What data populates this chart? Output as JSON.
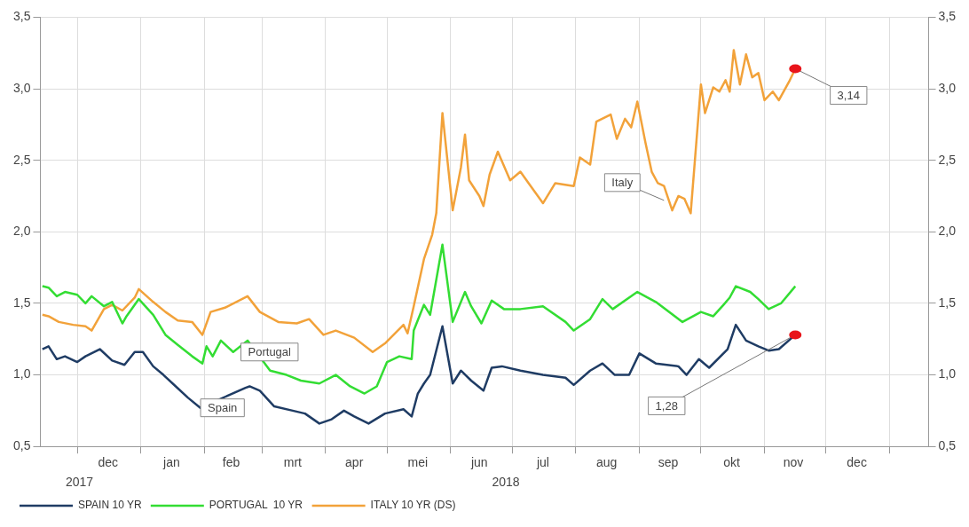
{
  "chart_data": {
    "type": "line",
    "xlim": [
      "2017-11-13",
      "2019-01-20"
    ],
    "xticks": [
      {
        "value": "2017-12-01",
        "label": null
      },
      {
        "value": "2018-01-01",
        "label": null
      },
      {
        "value": "2018-02-01",
        "label": null
      },
      {
        "value": "2018-03-01",
        "label": null
      },
      {
        "value": "2018-04-01",
        "label": null
      },
      {
        "value": "2018-05-01",
        "label": null
      },
      {
        "value": "2018-06-01",
        "label": null
      },
      {
        "value": "2018-07-01",
        "label": null
      },
      {
        "value": "2018-08-01",
        "label": null
      },
      {
        "value": "2018-09-01",
        "label": null
      },
      {
        "value": "2018-10-01",
        "label": null
      },
      {
        "value": "2018-11-01",
        "label": null
      },
      {
        "value": "2018-12-01",
        "label": null
      },
      {
        "value": "2019-01-01",
        "label": null
      },
      {
        "value": "2017-12-16",
        "label": "dec"
      },
      {
        "value": "2018-01-16",
        "label": "jan"
      },
      {
        "value": "2018-02-14",
        "label": "feb"
      },
      {
        "value": "2018-03-16",
        "label": "mrt"
      },
      {
        "value": "2018-04-15",
        "label": "apr"
      },
      {
        "value": "2018-05-16",
        "label": "mei"
      },
      {
        "value": "2018-06-15",
        "label": "jun"
      },
      {
        "value": "2018-07-16",
        "label": "jul"
      },
      {
        "value": "2018-08-16",
        "label": "aug"
      },
      {
        "value": "2018-09-15",
        "label": "sep"
      },
      {
        "value": "2018-10-16",
        "label": "okt"
      },
      {
        "value": "2018-11-15",
        "label": "nov"
      },
      {
        "value": "2018-12-16",
        "label": "dec"
      }
    ],
    "ylim": [
      0.5,
      3.5
    ],
    "yticks": [
      {
        "value": 0.5,
        "label": "0,5"
      },
      {
        "value": 1,
        "label": "1,0"
      },
      {
        "value": 1.5,
        "label": "1,5"
      },
      {
        "value": 2,
        "label": "2,0"
      },
      {
        "value": 2.5,
        "label": "2,5"
      },
      {
        "value": 3,
        "label": "3,0"
      },
      {
        "value": 3.5,
        "label": "3,5"
      }
    ],
    "y2lim": [
      0.5,
      3.5
    ],
    "y2ticks": [
      {
        "value": 0.5,
        "label": "0,5"
      },
      {
        "value": 1,
        "label": "1,0"
      },
      {
        "value": 1.5,
        "label": "1,5"
      },
      {
        "value": 2,
        "label": "2,0"
      },
      {
        "value": 2.5,
        "label": "2,5"
      },
      {
        "value": 3,
        "label": "3,0"
      },
      {
        "value": 3.5,
        "label": "3,5"
      }
    ],
    "grid": true,
    "legend": "bottom left",
    "marker": "none",
    "line_style": "solid",
    "series": [
      {
        "name": "SPAIN 10 YR",
        "color": "#1f3c64",
        "x": [
          "2017-11-14",
          "2017-11-17",
          "2017-11-21",
          "2017-11-25",
          "2017-12-01",
          "2017-12-05",
          "2017-12-12",
          "2017-12-18",
          "2017-12-24",
          "2017-12-29",
          "2018-01-02",
          "2018-01-07",
          "2018-01-12",
          "2018-01-18",
          "2018-01-24",
          "2018-01-30",
          "2018-02-21",
          "2018-02-23",
          "2018-02-28",
          "2018-03-07",
          "2018-03-16",
          "2018-03-22",
          "2018-03-29",
          "2018-04-04",
          "2018-04-10",
          "2018-04-15",
          "2018-04-22",
          "2018-04-30",
          "2018-05-09",
          "2018-05-13",
          "2018-05-16",
          "2018-05-19",
          "2018-05-22",
          "2018-05-28",
          "2018-06-02",
          "2018-06-06",
          "2018-06-11",
          "2018-06-17",
          "2018-06-21",
          "2018-06-26",
          "2018-07-05",
          "2018-07-16",
          "2018-07-27",
          "2018-07-31",
          "2018-08-08",
          "2018-08-14",
          "2018-08-20",
          "2018-08-27",
          "2018-09-01",
          "2018-09-09",
          "2018-09-20",
          "2018-09-24",
          "2018-09-30",
          "2018-10-05",
          "2018-10-14",
          "2018-10-18",
          "2018-10-23",
          "2018-10-29",
          "2018-11-03",
          "2018-11-08",
          "2018-11-16"
        ],
        "values": [
          1.18,
          1.2,
          1.11,
          1.13,
          1.09,
          1.13,
          1.18,
          1.1,
          1.07,
          1.16,
          1.16,
          1.06,
          1.0,
          0.92,
          0.84,
          0.77,
          0.91,
          0.92,
          0.89,
          0.78,
          0.75,
          0.73,
          0.66,
          0.69,
          0.75,
          0.71,
          0.66,
          0.73,
          0.76,
          0.71,
          0.87,
          0.94,
          1.0,
          1.34,
          0.94,
          1.03,
          0.96,
          0.89,
          1.05,
          1.06,
          1.03,
          1.0,
          0.98,
          0.93,
          1.03,
          1.08,
          1.0,
          1.0,
          1.15,
          1.08,
          1.06,
          1.0,
          1.11,
          1.05,
          1.18,
          1.35,
          1.24,
          1.2,
          1.17,
          1.18,
          1.28
        ]
      },
      {
        "name": "PORTUGAL  10 YR",
        "color": "#33dd33",
        "x": [
          "2017-11-14",
          "2017-11-17",
          "2017-11-21",
          "2017-11-25",
          "2017-12-01",
          "2017-12-05",
          "2017-12-08",
          "2017-12-14",
          "2017-12-18",
          "2017-12-23",
          "2017-12-25",
          "2017-12-31",
          "2018-01-07",
          "2018-01-13",
          "2018-01-19",
          "2018-01-26",
          "2018-01-31",
          "2018-02-02",
          "2018-02-05",
          "2018-02-09",
          "2018-02-15",
          "2018-02-22",
          "2018-03-05",
          "2018-03-13",
          "2018-03-20",
          "2018-03-29",
          "2018-04-06",
          "2018-04-13",
          "2018-04-20",
          "2018-04-26",
          "2018-05-01",
          "2018-05-07",
          "2018-05-13",
          "2018-05-14",
          "2018-05-19",
          "2018-05-22",
          "2018-05-28",
          "2018-06-02",
          "2018-06-08",
          "2018-06-11",
          "2018-06-16",
          "2018-06-21",
          "2018-06-27",
          "2018-07-05",
          "2018-07-16",
          "2018-07-27",
          "2018-07-31",
          "2018-08-08",
          "2018-08-14",
          "2018-08-19",
          "2018-08-31",
          "2018-09-09",
          "2018-09-22",
          "2018-10-01",
          "2018-10-07",
          "2018-10-12",
          "2018-10-15",
          "2018-10-18",
          "2018-10-25",
          "2018-10-29",
          "2018-11-03",
          "2018-11-09",
          "2018-11-16"
        ],
        "values": [
          1.62,
          1.61,
          1.55,
          1.58,
          1.56,
          1.5,
          1.55,
          1.48,
          1.51,
          1.36,
          1.41,
          1.53,
          1.42,
          1.28,
          1.21,
          1.13,
          1.08,
          1.2,
          1.13,
          1.24,
          1.16,
          1.24,
          1.03,
          1.0,
          0.96,
          0.94,
          1.0,
          0.92,
          0.87,
          0.92,
          1.09,
          1.13,
          1.11,
          1.31,
          1.49,
          1.42,
          1.91,
          1.37,
          1.58,
          1.48,
          1.36,
          1.52,
          1.46,
          1.46,
          1.48,
          1.37,
          1.31,
          1.39,
          1.53,
          1.46,
          1.58,
          1.51,
          1.37,
          1.44,
          1.41,
          1.49,
          1.54,
          1.62,
          1.58,
          1.53,
          1.46,
          1.5,
          1.62
        ]
      },
      {
        "name": "ITALY 10 YR (DS)",
        "color": "#f2a23a",
        "x": [
          "2017-11-14",
          "2017-11-17",
          "2017-11-22",
          "2017-11-29",
          "2017-12-05",
          "2017-12-08",
          "2017-12-14",
          "2017-12-18",
          "2017-12-23",
          "2017-12-29",
          "2017-12-31",
          "2018-01-07",
          "2018-01-13",
          "2018-01-19",
          "2018-01-26",
          "2018-01-31",
          "2018-02-04",
          "2018-02-11",
          "2018-02-22",
          "2018-02-28",
          "2018-03-09",
          "2018-03-18",
          "2018-03-24",
          "2018-03-31",
          "2018-04-06",
          "2018-04-15",
          "2018-04-24",
          "2018-04-30",
          "2018-05-09",
          "2018-05-11",
          "2018-05-14",
          "2018-05-19",
          "2018-05-23",
          "2018-05-25",
          "2018-05-28",
          "2018-06-02",
          "2018-06-06",
          "2018-06-08",
          "2018-06-10",
          "2018-06-15",
          "2018-06-17",
          "2018-06-20",
          "2018-06-24",
          "2018-06-30",
          "2018-07-05",
          "2018-07-09",
          "2018-07-16",
          "2018-07-22",
          "2018-07-31",
          "2018-08-03",
          "2018-08-08",
          "2018-08-11",
          "2018-08-18",
          "2018-08-21",
          "2018-08-25",
          "2018-08-28",
          "2018-08-31",
          "2018-09-04",
          "2018-09-07",
          "2018-09-10",
          "2018-09-13",
          "2018-09-17",
          "2018-09-20",
          "2018-09-23",
          "2018-09-26",
          "2018-10-01",
          "2018-10-03",
          "2018-10-07",
          "2018-10-10",
          "2018-10-13",
          "2018-10-15",
          "2018-10-17",
          "2018-10-20",
          "2018-10-23",
          "2018-10-26",
          "2018-10-29",
          "2018-11-01",
          "2018-11-05",
          "2018-11-08",
          "2018-11-13",
          "2018-11-16"
        ],
        "values": [
          1.42,
          1.41,
          1.37,
          1.35,
          1.34,
          1.31,
          1.46,
          1.49,
          1.45,
          1.54,
          1.6,
          1.51,
          1.44,
          1.38,
          1.37,
          1.28,
          1.44,
          1.47,
          1.55,
          1.44,
          1.37,
          1.36,
          1.39,
          1.28,
          1.31,
          1.26,
          1.16,
          1.22,
          1.35,
          1.29,
          1.48,
          1.81,
          1.98,
          2.13,
          2.83,
          2.15,
          2.45,
          2.68,
          2.36,
          2.25,
          2.18,
          2.4,
          2.56,
          2.36,
          2.42,
          2.34,
          2.2,
          2.34,
          2.32,
          2.52,
          2.47,
          2.77,
          2.82,
          2.65,
          2.79,
          2.73,
          2.91,
          2.62,
          2.42,
          2.34,
          2.32,
          2.15,
          2.25,
          2.23,
          2.13,
          3.03,
          2.83,
          3.01,
          2.98,
          3.06,
          2.98,
          3.27,
          3.03,
          3.24,
          3.08,
          3.11,
          2.92,
          2.98,
          2.92,
          3.05,
          3.14
        ]
      }
    ],
    "annotations": [
      "Spain",
      "Portugal",
      {
        "text": "Italy",
        "x": "2018-09-13",
        "y": 2.22
      },
      {
        "text": "3,14",
        "x": "2018-11-16",
        "y": 3.14
      },
      {
        "text": "1,28",
        "x": "2018-11-16",
        "y": 1.28
      },
      "2017",
      "2018"
    ]
  }
}
